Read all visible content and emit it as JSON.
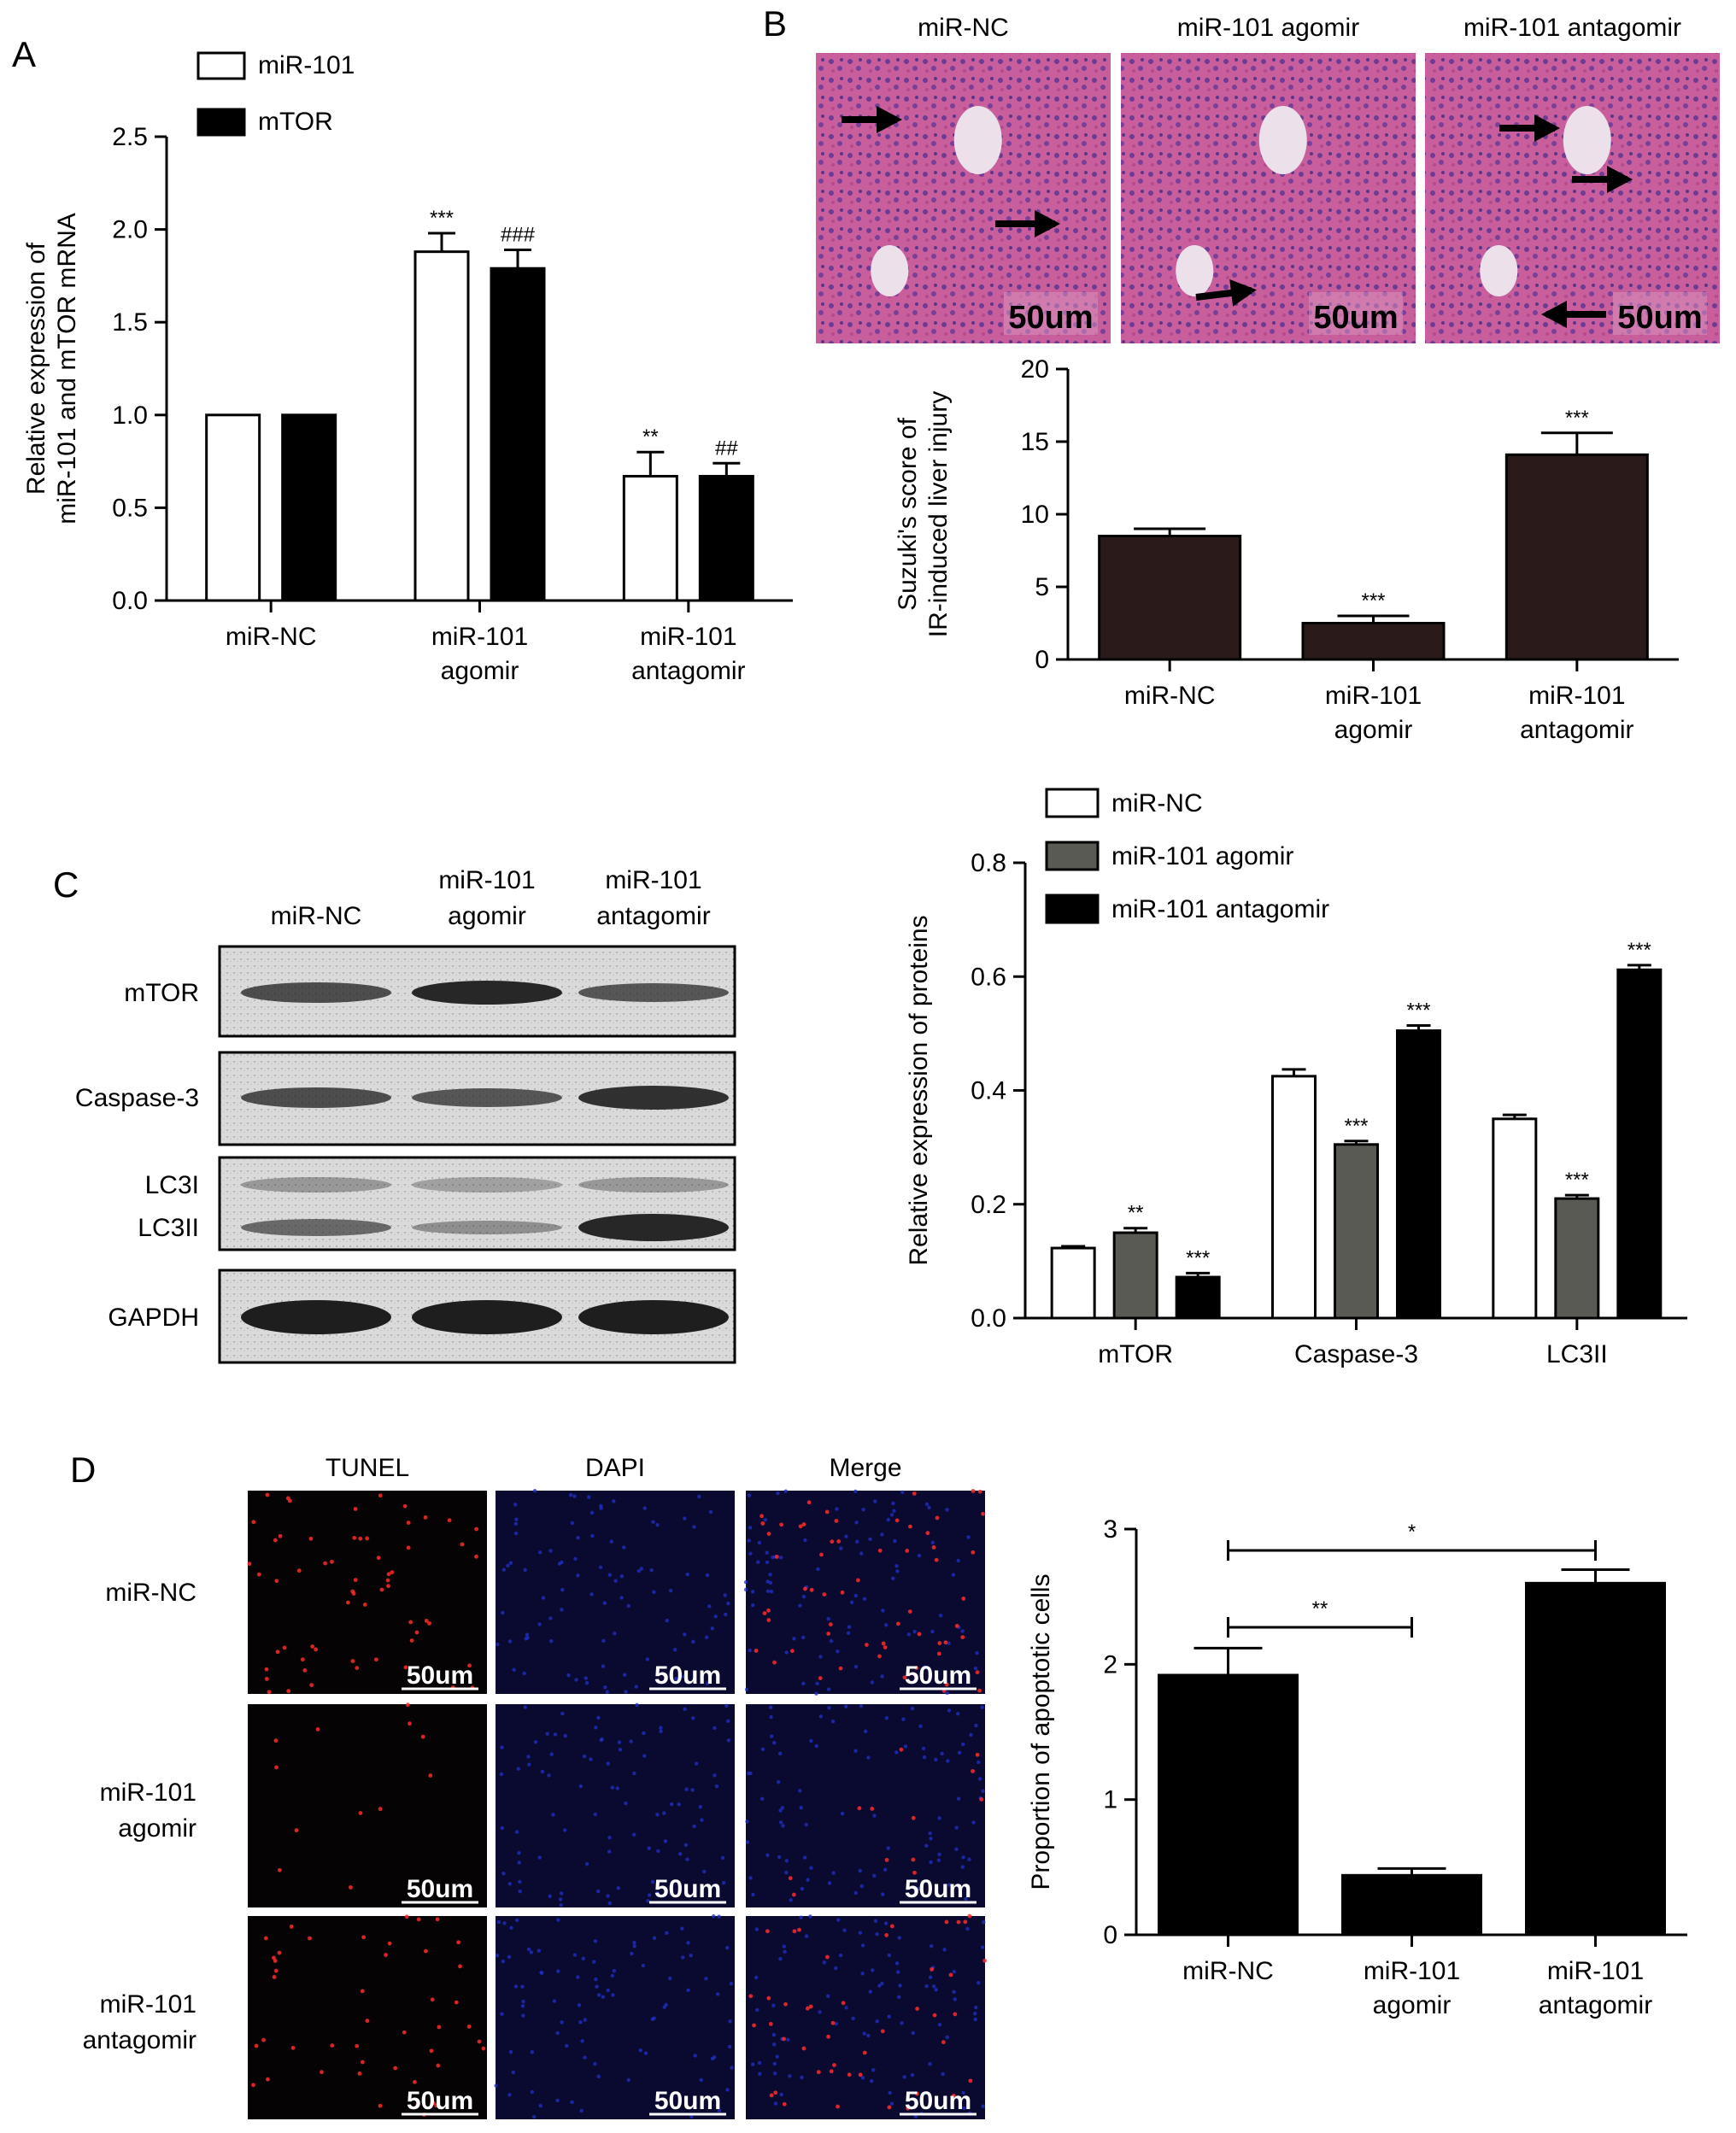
{
  "panels": {
    "a": {
      "letter": "A"
    },
    "b": {
      "letter": "B"
    },
    "c": {
      "letter": "C"
    },
    "d": {
      "letter": "D"
    }
  },
  "he_images": {
    "headers": [
      "miR-NC",
      "miR-101 agomir",
      "miR-101 antagomir"
    ],
    "scale_label": "50um"
  },
  "western": {
    "lanes": [
      {
        "line1": "",
        "line2": "miR-NC"
      },
      {
        "line1": "miR-101",
        "line2": "agomir"
      },
      {
        "line1": "miR-101",
        "line2": "antagomir"
      }
    ],
    "rows": [
      "mTOR",
      "Caspase-3",
      "LC3I",
      "LC3II",
      "GAPDH"
    ],
    "band_color": "#1e1e1e",
    "bg_color": "#dadada"
  },
  "fluorescence": {
    "columns": [
      "TUNEL",
      "DAPI",
      "Merge"
    ],
    "rows": [
      {
        "line1": "miR-NC",
        "line2": ""
      },
      {
        "line1": "miR-101",
        "line2": "agomir"
      },
      {
        "line1": "miR-101",
        "line2": "antagomir"
      }
    ],
    "scale_label": "50um",
    "tunel_color": "#ff2a2a",
    "dapi_color": "#2030c8"
  },
  "chart_data": [
    {
      "panel": "A",
      "type": "bar",
      "categories": [
        [
          "miR-NC"
        ],
        [
          "miR-101",
          "agomir"
        ],
        [
          "miR-101",
          "antagomir"
        ]
      ],
      "series": [
        {
          "name": "miR-101",
          "values": [
            1.0,
            1.88,
            0.67
          ],
          "errors": [
            0,
            0.1,
            0.13
          ],
          "color": "#ffffff"
        },
        {
          "name": "mTOR",
          "values": [
            1.0,
            1.79,
            0.67
          ],
          "errors": [
            0,
            0.1,
            0.07
          ],
          "color": "#000000"
        }
      ],
      "annotations": [
        [
          "",
          "***",
          "**"
        ],
        [
          "",
          "###",
          "##"
        ]
      ],
      "ylabel": [
        "Relative expression of",
        "miR-101 and mTOR mRNA"
      ],
      "xlabel": "",
      "ylim": [
        0,
        2.5
      ],
      "yticks": [
        "0.0",
        "0.5",
        "1.0",
        "1.5",
        "2.0",
        "2.5"
      ],
      "legend": "top-left"
    },
    {
      "panel": "B",
      "type": "bar",
      "categories": [
        [
          "miR-NC"
        ],
        [
          "miR-101",
          "agomir"
        ],
        [
          "miR-101",
          "antagomir"
        ]
      ],
      "series": [
        {
          "values": [
            8.5,
            2.5,
            14.1
          ],
          "errors": [
            0.5,
            0.5,
            1.5
          ],
          "color": "#2b1a1a"
        }
      ],
      "annotations": [
        [
          "",
          "***",
          "***"
        ]
      ],
      "ylabel": [
        "Suzuki's score of",
        "IR-induced liver injury"
      ],
      "xlabel": "",
      "ylim": [
        0,
        20
      ],
      "yticks": [
        "0",
        "5",
        "10",
        "15",
        "20"
      ]
    },
    {
      "panel": "C",
      "type": "bar",
      "categories": [
        [
          "mTOR"
        ],
        [
          "Caspase-3"
        ],
        [
          "LC3II"
        ]
      ],
      "series": [
        {
          "name": "miR-NC",
          "values": [
            0.123,
            0.425,
            0.35
          ],
          "errors": [
            0.003,
            0.012,
            0.007
          ],
          "color": "#ffffff"
        },
        {
          "name": "miR-101 agomir",
          "values": [
            0.15,
            0.305,
            0.21
          ],
          "errors": [
            0.008,
            0.006,
            0.006
          ],
          "color": "#5a5a55"
        },
        {
          "name": "miR-101 antagomir",
          "values": [
            0.072,
            0.505,
            0.612
          ],
          "errors": [
            0.007,
            0.009,
            0.008
          ],
          "color": "#000000"
        }
      ],
      "annotations": [
        [
          "",
          "",
          ""
        ],
        [
          "**",
          "***",
          "***"
        ],
        [
          "***",
          "***",
          "***"
        ]
      ],
      "ylabel": [
        "Relative expression of proteins"
      ],
      "xlabel": "",
      "ylim": [
        0,
        0.8
      ],
      "yticks": [
        "0.0",
        "0.2",
        "0.4",
        "0.6",
        "0.8"
      ],
      "legend": "top"
    },
    {
      "panel": "D",
      "type": "bar",
      "categories": [
        [
          "miR-NC"
        ],
        [
          "miR-101",
          "agomir"
        ],
        [
          "miR-101",
          "antagomir"
        ]
      ],
      "series": [
        {
          "values": [
            1.92,
            0.44,
            2.6
          ],
          "errors": [
            0.2,
            0.05,
            0.1
          ],
          "color": "#000000"
        }
      ],
      "significance": [
        {
          "from": 0,
          "to": 2,
          "label": "*"
        },
        {
          "from": 0,
          "to": 1,
          "label": "**"
        }
      ],
      "ylabel": [
        "Proportion of apoptotic cells"
      ],
      "xlabel": "",
      "ylim": [
        0,
        3
      ],
      "yticks": [
        "0",
        "1",
        "2",
        "3"
      ]
    }
  ]
}
